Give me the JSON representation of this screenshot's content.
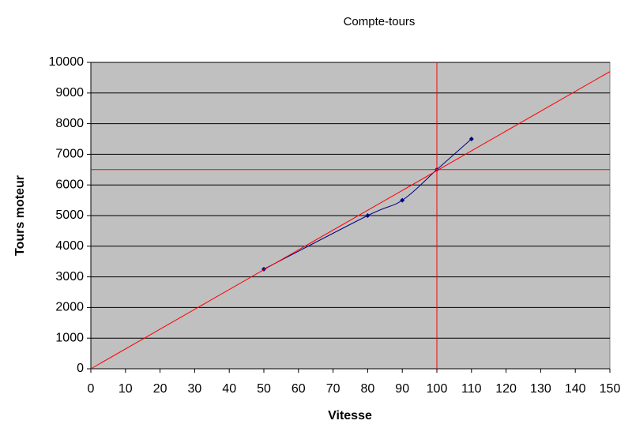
{
  "chart_data": {
    "type": "scatter",
    "title": "Compte-tours",
    "x_label": "Vitesse",
    "y_label": "Tours moteur",
    "xlim": [
      0,
      150
    ],
    "xticks": [
      0,
      10,
      20,
      30,
      40,
      50,
      60,
      70,
      80,
      90,
      100,
      110,
      120,
      130,
      140,
      150
    ],
    "ylim": [
      0,
      10000
    ],
    "yticks": [
      0,
      1000,
      2000,
      3000,
      4000,
      5000,
      6000,
      7000,
      8000,
      9000,
      10000
    ],
    "grid": true,
    "series": [
      {
        "x": [
          50,
          80,
          90,
          100,
          110
        ],
        "values": [
          3250,
          5000,
          5500,
          6500,
          7500
        ],
        "color": "#000080",
        "smooth": true,
        "markers": true
      },
      {
        "x": [
          0,
          150
        ],
        "values": [
          0,
          9700
        ],
        "color": "#ff0000",
        "smooth": false,
        "markers": false
      },
      {
        "x": [
          0,
          150
        ],
        "values": [
          6500,
          6500
        ],
        "color": "#ff0000",
        "smooth": false,
        "markers": false
      },
      {
        "x": [
          100,
          100
        ],
        "values": [
          0,
          10000
        ],
        "color": "#ff0000",
        "smooth": false,
        "markers": false
      }
    ]
  }
}
